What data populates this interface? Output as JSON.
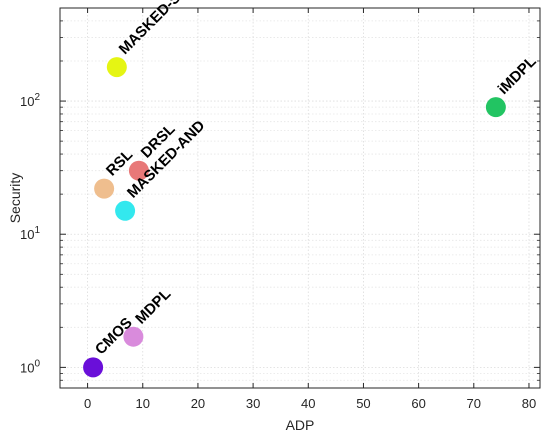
{
  "chart_data": {
    "type": "scatter",
    "title": "",
    "xlabel": "ADP",
    "ylabel": "Security",
    "xlim": [
      -5,
      82
    ],
    "ylim": [
      0.7,
      500
    ],
    "yscale": "log",
    "grid": true,
    "x_ticks": [
      0,
      10,
      20,
      30,
      40,
      50,
      60,
      70,
      80
    ],
    "y_ticks": [
      {
        "value": 1,
        "base": "10",
        "exp": "0"
      },
      {
        "value": 10,
        "base": "10",
        "exp": "1"
      },
      {
        "value": 100,
        "base": "10",
        "exp": "2"
      }
    ],
    "points": [
      {
        "label": "MASKED-SABL",
        "x": 5.3,
        "y": 180,
        "color": "#e5f513"
      },
      {
        "label": "iMDPL",
        "x": 74,
        "y": 90,
        "color": "#22c462"
      },
      {
        "label": "DRSL",
        "x": 9.3,
        "y": 30,
        "color": "#e87878"
      },
      {
        "label": "RSL",
        "x": 3,
        "y": 22,
        "color": "#efbe8e"
      },
      {
        "label": "MASKED-AND",
        "x": 6.8,
        "y": 15,
        "color": "#33e8ee"
      },
      {
        "label": "MDPL",
        "x": 8.3,
        "y": 1.7,
        "color": "#d98bdc"
      },
      {
        "label": "CMOS",
        "x": 1,
        "y": 1,
        "color": "#6a0fd9"
      }
    ]
  }
}
